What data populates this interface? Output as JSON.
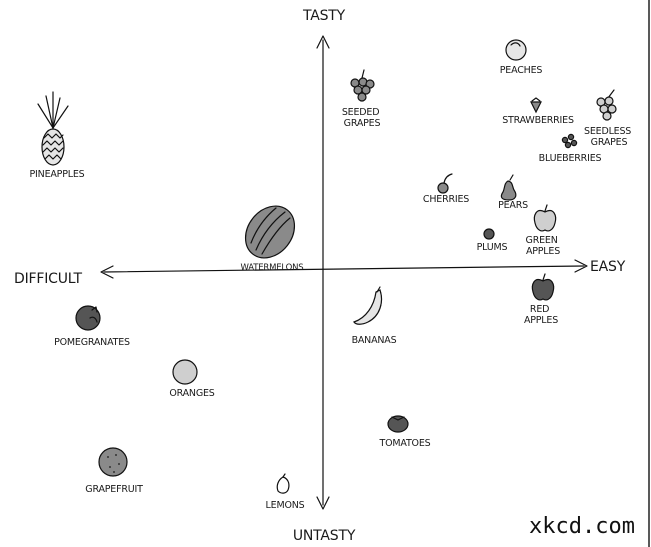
{
  "axes": {
    "top": "TASTY",
    "bottom": "UNTASTY",
    "left": "DIFFICULT",
    "right": "EASY"
  },
  "credit": "xkcd.com",
  "fruits": [
    {
      "id": "peaches",
      "lines": [
        "PEACHES"
      ]
    },
    {
      "id": "seeded-grapes",
      "lines": [
        "SEEDED",
        "GRAPES"
      ]
    },
    {
      "id": "strawberries",
      "lines": [
        "STRAWBERRIES"
      ]
    },
    {
      "id": "seedless-grapes",
      "lines": [
        "SEEDLESS",
        "GRAPES"
      ]
    },
    {
      "id": "blueberries",
      "lines": [
        "BLUEBERRIES"
      ]
    },
    {
      "id": "pineapples",
      "lines": [
        "PINEAPPLES"
      ]
    },
    {
      "id": "cherries",
      "lines": [
        "CHERRIES"
      ]
    },
    {
      "id": "pears",
      "lines": [
        "PEARS"
      ]
    },
    {
      "id": "green-apples",
      "lines": [
        "GREEN",
        "APPLES"
      ]
    },
    {
      "id": "plums",
      "lines": [
        "PLUMS"
      ]
    },
    {
      "id": "watermelons",
      "lines": [
        "WATERMELONS"
      ]
    },
    {
      "id": "red-apples",
      "lines": [
        "RED",
        "APPLES"
      ]
    },
    {
      "id": "pomegranates",
      "lines": [
        "POMEGRANATES"
      ]
    },
    {
      "id": "bananas",
      "lines": [
        "BANANAS"
      ]
    },
    {
      "id": "oranges",
      "lines": [
        "ORANGES"
      ]
    },
    {
      "id": "tomatoes",
      "lines": [
        "TOMATOES"
      ]
    },
    {
      "id": "grapefruit",
      "lines": [
        "GRAPEFRUIT"
      ]
    },
    {
      "id": "lemons",
      "lines": [
        "LEMONS"
      ]
    }
  ]
}
